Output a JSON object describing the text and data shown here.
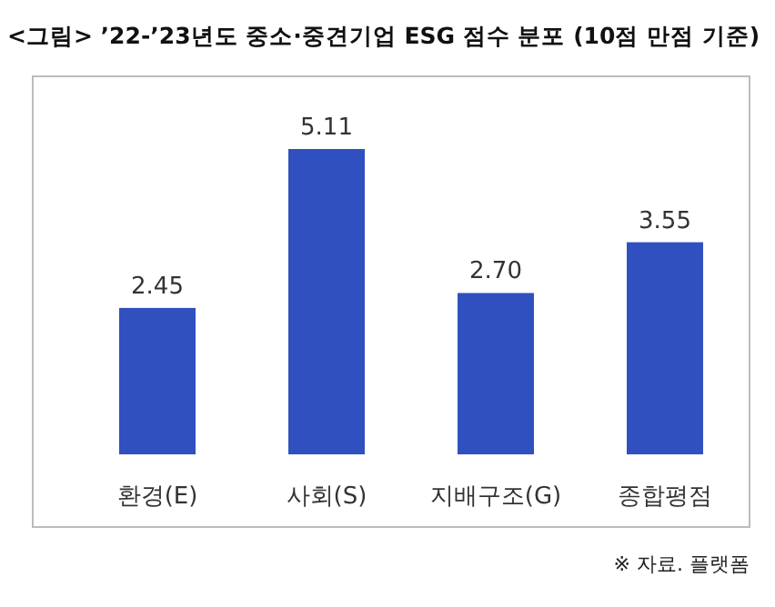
{
  "chart_data": {
    "type": "bar",
    "title": "<그림> ’22-’23년도 중소·중견기업 ESG 점수 분포 (10점 만점 기준)",
    "categories": [
      "환경(E)",
      "사회(S)",
      "지배구조(G)",
      "종합평점"
    ],
    "values": [
      2.45,
      5.11,
      2.7,
      3.55
    ],
    "value_labels": [
      "2.45",
      "5.11",
      "2.70",
      "3.55"
    ],
    "color": "#3050c0",
    "annotations": [
      "※ 자료. 플랫폼"
    ]
  }
}
